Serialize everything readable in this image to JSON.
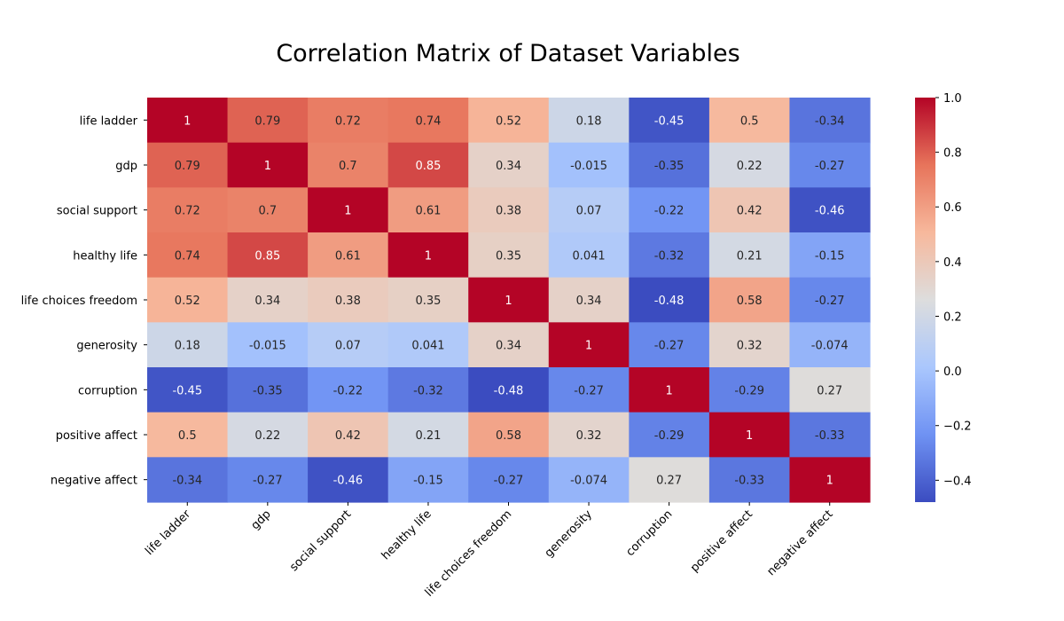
{
  "chart_data": {
    "type": "heatmap",
    "title": "Correlation Matrix of Dataset Variables",
    "x_categories": [
      "life ladder",
      "gdp",
      "social support",
      "healthy life",
      "life choices freedom",
      "generosity",
      "corruption",
      "positive affect",
      "negative affect"
    ],
    "y_categories": [
      "life ladder",
      "gdp",
      "social support",
      "healthy life",
      "life choices freedom",
      "generosity",
      "corruption",
      "positive affect",
      "negative affect"
    ],
    "values": [
      [
        1,
        0.79,
        0.72,
        0.74,
        0.52,
        0.18,
        -0.45,
        0.5,
        -0.34
      ],
      [
        0.79,
        1,
        0.7,
        0.85,
        0.34,
        -0.015,
        -0.35,
        0.22,
        -0.27
      ],
      [
        0.72,
        0.7,
        1,
        0.61,
        0.38,
        0.07,
        -0.22,
        0.42,
        -0.46
      ],
      [
        0.74,
        0.85,
        0.61,
        1,
        0.35,
        0.041,
        -0.32,
        0.21,
        -0.15
      ],
      [
        0.52,
        0.34,
        0.38,
        0.35,
        1,
        0.34,
        -0.48,
        0.58,
        -0.27
      ],
      [
        0.18,
        -0.015,
        0.07,
        0.041,
        0.34,
        1,
        -0.27,
        0.32,
        -0.074
      ],
      [
        -0.45,
        -0.35,
        -0.22,
        -0.32,
        -0.48,
        -0.27,
        1,
        -0.29,
        0.27
      ],
      [
        0.5,
        0.22,
        0.42,
        0.21,
        0.58,
        0.32,
        -0.29,
        1,
        -0.33
      ],
      [
        -0.34,
        -0.27,
        -0.46,
        -0.15,
        -0.27,
        -0.074,
        0.27,
        -0.33,
        1
      ]
    ],
    "annotations": [
      [
        "1",
        "0.79",
        "0.72",
        "0.74",
        "0.52",
        "0.18",
        "-0.45",
        "0.5",
        "-0.34"
      ],
      [
        "0.79",
        "1",
        "0.7",
        "0.85",
        "0.34",
        "-0.015",
        "-0.35",
        "0.22",
        "-0.27"
      ],
      [
        "0.72",
        "0.7",
        "1",
        "0.61",
        "0.38",
        "0.07",
        "-0.22",
        "0.42",
        "-0.46"
      ],
      [
        "0.74",
        "0.85",
        "0.61",
        "1",
        "0.35",
        "0.041",
        "-0.32",
        "0.21",
        "-0.15"
      ],
      [
        "0.52",
        "0.34",
        "0.38",
        "0.35",
        "1",
        "0.34",
        "-0.48",
        "0.58",
        "-0.27"
      ],
      [
        "0.18",
        "-0.015",
        "0.07",
        "0.041",
        "0.34",
        "1",
        "-0.27",
        "0.32",
        "-0.074"
      ],
      [
        "-0.45",
        "-0.35",
        "-0.22",
        "-0.32",
        "-0.48",
        "-0.27",
        "1",
        "-0.29",
        "0.27"
      ],
      [
        "0.5",
        "0.22",
        "0.42",
        "0.21",
        "0.58",
        "0.32",
        "-0.29",
        "1",
        "-0.33"
      ],
      [
        "-0.34",
        "-0.27",
        "-0.46",
        "-0.15",
        "-0.27",
        "-0.074",
        "0.27",
        "-0.33",
        "1"
      ]
    ],
    "colormap": "coolwarm",
    "colormap_stops": [
      "#3b4cc0",
      "#6f92f3",
      "#aac7fd",
      "#dddddd",
      "#f7b89c",
      "#e7745b",
      "#b40426"
    ],
    "vmin": -0.48,
    "vmax": 1,
    "colorbar": {
      "ticks": [
        1.0,
        0.8,
        0.6,
        0.4,
        0.2,
        0.0,
        -0.2,
        -0.4
      ],
      "tick_labels": [
        "1.0",
        "0.8",
        "0.6",
        "0.4",
        "0.2",
        "0.0",
        "−0.2",
        "−0.4"
      ]
    },
    "xlabel": "",
    "ylabel": "",
    "annot_dark_color": "#262626",
    "annot_light_color": "#ffffff"
  }
}
